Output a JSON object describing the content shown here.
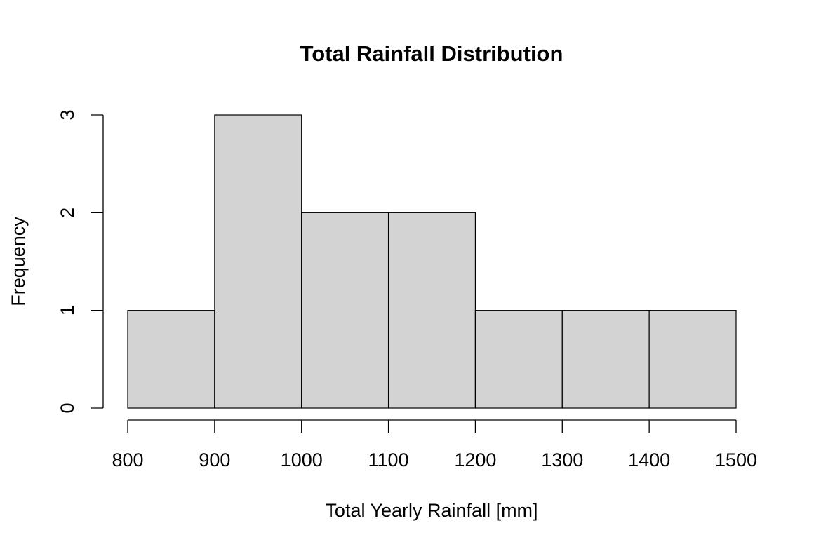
{
  "chart_data": {
    "type": "bar",
    "subtype": "histogram",
    "title": "Total Rainfall Distribution",
    "xlabel": "Total Yearly Rainfall [mm]",
    "ylabel": "Frequency",
    "bins": [
      {
        "start": 800,
        "end": 900,
        "count": 1
      },
      {
        "start": 900,
        "end": 1000,
        "count": 3
      },
      {
        "start": 1000,
        "end": 1100,
        "count": 2
      },
      {
        "start": 1100,
        "end": 1200,
        "count": 2
      },
      {
        "start": 1200,
        "end": 1300,
        "count": 1
      },
      {
        "start": 1300,
        "end": 1400,
        "count": 1
      },
      {
        "start": 1400,
        "end": 1500,
        "count": 1
      }
    ],
    "x_ticks": [
      800,
      900,
      1000,
      1100,
      1200,
      1300,
      1400,
      1500
    ],
    "y_ticks": [
      0,
      1,
      2,
      3
    ],
    "xlim": [
      800,
      1500
    ],
    "ylim": [
      0,
      3
    ],
    "grid": false,
    "colors": {
      "bar_fill": "#d3d3d3",
      "bar_stroke": "#000000"
    }
  }
}
